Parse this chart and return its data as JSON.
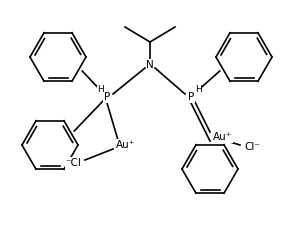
{
  "bg_color": "#ffffff",
  "line_color": "#000000",
  "lw": 1.2,
  "fs": 7.5,
  "figsize": [
    3.01,
    2.27
  ],
  "dpi": 100,
  "xlim": [
    0,
    301
  ],
  "ylim": [
    0,
    227
  ]
}
